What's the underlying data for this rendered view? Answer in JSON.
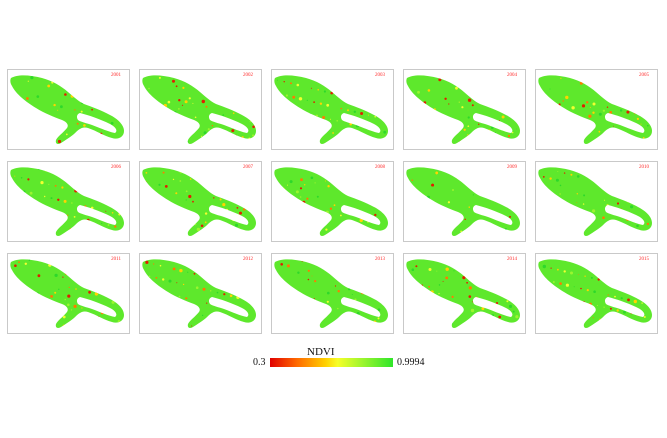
{
  "panels": [
    {
      "year": "2001"
    },
    {
      "year": "2002"
    },
    {
      "year": "2003"
    },
    {
      "year": "2004"
    },
    {
      "year": "2005"
    },
    {
      "year": "2006"
    },
    {
      "year": "2007"
    },
    {
      "year": "2008"
    },
    {
      "year": "2009"
    },
    {
      "year": "2010"
    },
    {
      "year": "2011"
    },
    {
      "year": "2012"
    },
    {
      "year": "2013"
    },
    {
      "year": "2014"
    },
    {
      "year": "2015"
    }
  ],
  "legend": {
    "title": "NDVI",
    "min_label": "0.3",
    "max_label": "0.9994",
    "colors": [
      "#e00000",
      "#ff6a00",
      "#ffd000",
      "#f6ff28",
      "#9df52e",
      "#2fe52a"
    ]
  },
  "colors": {
    "vegetation": "#5ee82c",
    "panel_border": "#c9c9c9",
    "year_label": "#ff2a2a"
  }
}
